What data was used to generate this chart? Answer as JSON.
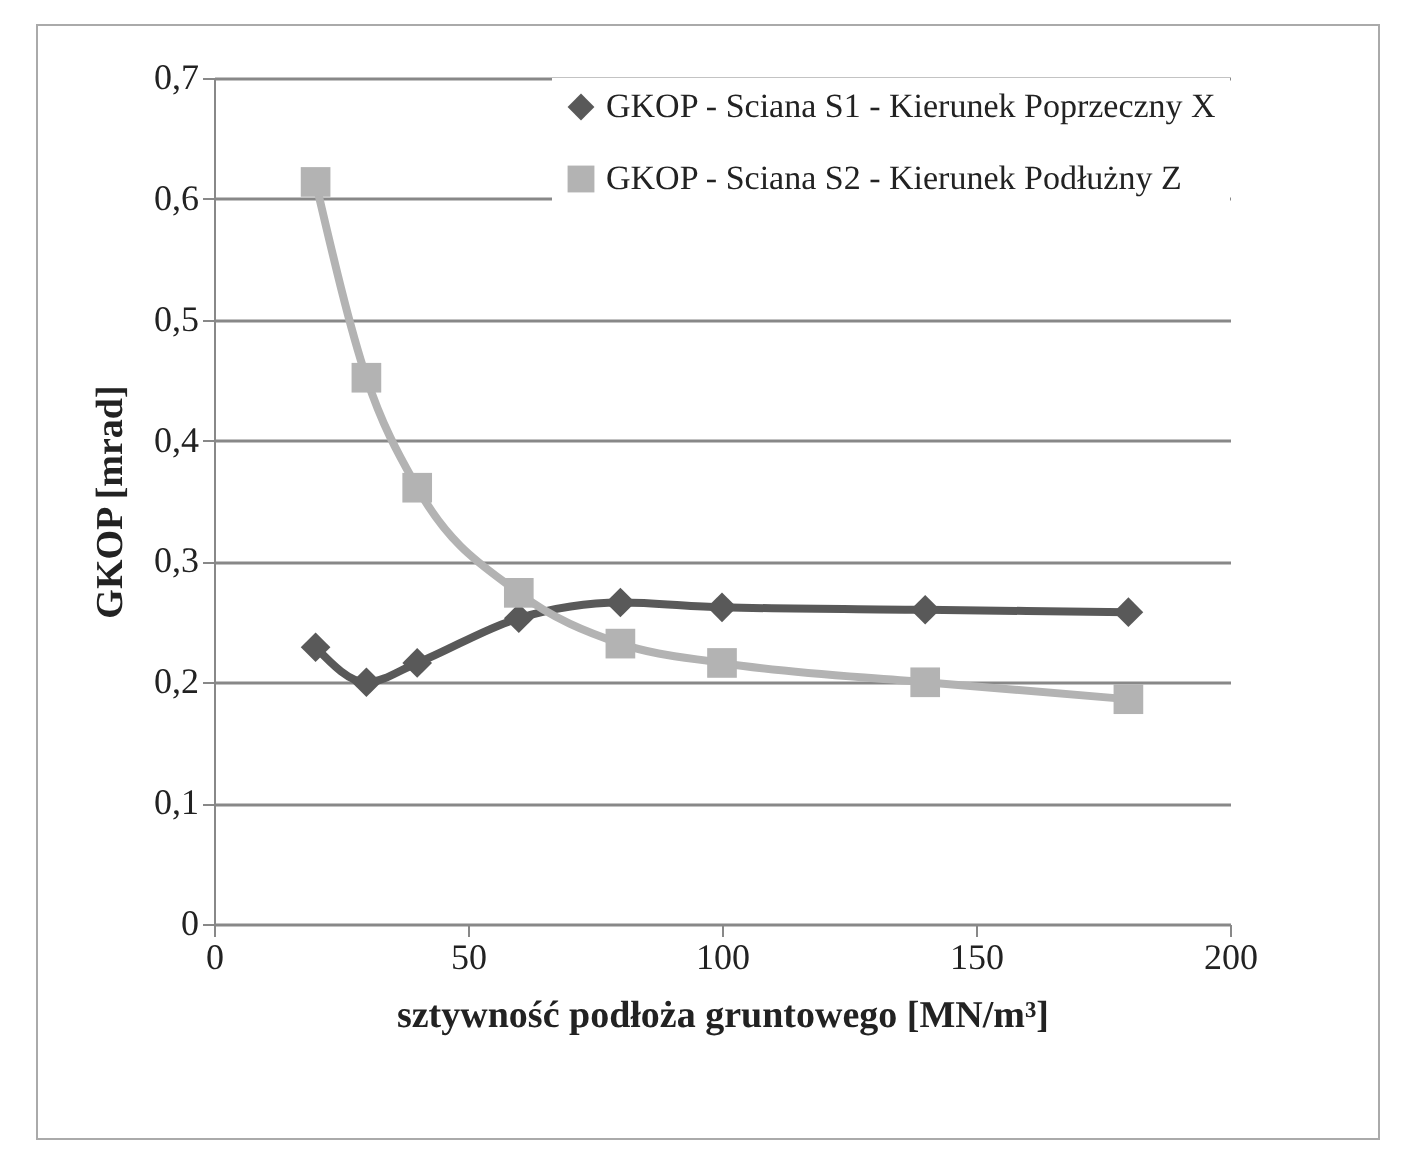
{
  "chart_data": {
    "type": "line",
    "xlabel": "sztywność podłoża gruntowego [MN/m³]",
    "ylabel": "GKOP [mrad]",
    "x": [
      20,
      30,
      40,
      60,
      80,
      100,
      140,
      180
    ],
    "series": [
      {
        "name": "GKOP - Sciana S1 - Kierunek Poprzeczny X",
        "color": "#595959",
        "marker": "diamond",
        "values": [
          0.229,
          0.2,
          0.216,
          0.253,
          0.266,
          0.262,
          0.26,
          0.258
        ]
      },
      {
        "name": "GKOP - Sciana S2 - Kierunek Podłużny Z",
        "color": "#b3b3b3",
        "marker": "square",
        "values": [
          0.614,
          0.452,
          0.361,
          0.274,
          0.232,
          0.216,
          0.2,
          0.186
        ]
      }
    ],
    "xlim": [
      0,
      200
    ],
    "xticks": [
      0,
      50,
      100,
      150,
      200
    ],
    "ylim": [
      0,
      0.7
    ],
    "yticks": [
      {
        "value": 0,
        "label": "0"
      },
      {
        "value": 0.1,
        "label": "0,1"
      },
      {
        "value": 0.2,
        "label": "0,2"
      },
      {
        "value": 0.3,
        "label": "0,3"
      },
      {
        "value": 0.4,
        "label": "0,4"
      },
      {
        "value": 0.5,
        "label": "0,5"
      },
      {
        "value": 0.6,
        "label": "0,6"
      },
      {
        "value": 0.7,
        "label": "0,7"
      }
    ],
    "grid": "y",
    "legend": "top right",
    "line_style": "solid"
  }
}
